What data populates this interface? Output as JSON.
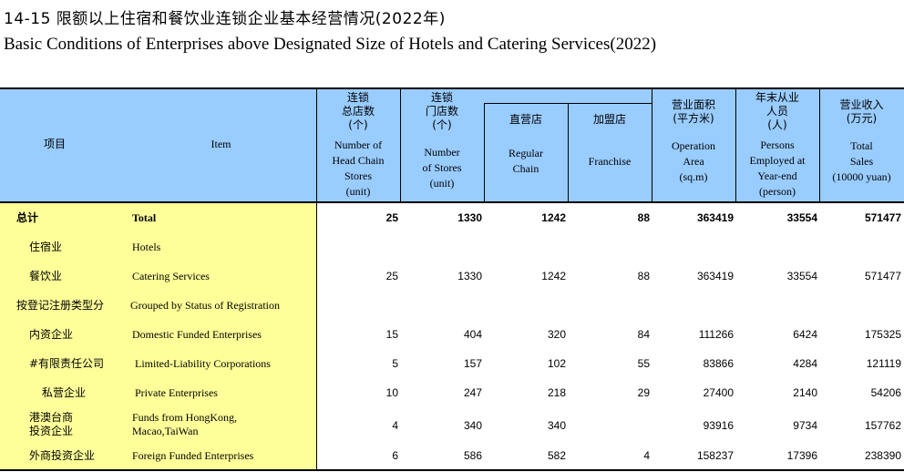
{
  "title_cn": "14-15  限额以上住宿和餐饮业连锁企业基本经营情况(2022年)",
  "title_en": "Basic Conditions of Enterprises above Designated Size of Hotels and Catering Services(2022)",
  "header": {
    "item_cn": "项目",
    "item_en": "Item",
    "head_stores_cn": "连锁\n总店数\n(个)",
    "head_stores_en": "Number of\nHead Chain\nStores\n(unit)",
    "stores_cn": "连锁\n门店数\n(个)",
    "stores_en": "Number\nof Stores\n(unit)",
    "regular_cn": "直营店",
    "regular_en": "Regular\nChain",
    "franchise_cn": "加盟店",
    "franchise_en": "Franchise",
    "area_cn": "营业面积\n(平方米)",
    "area_en": "Operation\nArea\n(sq.m)",
    "persons_cn": "年末从业\n人员\n(人)",
    "persons_en": "Persons\nEmployed at\nYear-end\n(person)",
    "sales_cn": "营业收入\n(万元)",
    "sales_en": "Total\nSales\n(10000 yuan)"
  },
  "rows": [
    {
      "cn": "总计",
      "en": "Total",
      "head_stores": "25",
      "stores": "1330",
      "regular": "1242",
      "franchise": "88",
      "area": "363419",
      "persons": "33554",
      "sales": "571477"
    },
    {
      "cn": "住宿业",
      "en": "Hotels",
      "head_stores": "",
      "stores": "",
      "regular": "",
      "franchise": "",
      "area": "",
      "persons": "",
      "sales": ""
    },
    {
      "cn": "餐饮业",
      "en": "Catering Services",
      "head_stores": "25",
      "stores": "1330",
      "regular": "1242",
      "franchise": "88",
      "area": "363419",
      "persons": "33554",
      "sales": "571477"
    },
    {
      "cn": "按登记注册类型分",
      "en": "Grouped by Status of Registration",
      "head_stores": "",
      "stores": "",
      "regular": "",
      "franchise": "",
      "area": "",
      "persons": "",
      "sales": ""
    },
    {
      "cn": "内资企业",
      "en": "Domestic Funded Enterprises",
      "head_stores": "15",
      "stores": "404",
      "regular": "320",
      "franchise": "84",
      "area": "111266",
      "persons": "6424",
      "sales": "175325"
    },
    {
      "cn": "#有限责任公司",
      "en": "Limited-Liability Corporations",
      "head_stores": "5",
      "stores": "157",
      "regular": "102",
      "franchise": "55",
      "area": "83866",
      "persons": "4284",
      "sales": "121119"
    },
    {
      "cn": "私营企业",
      "en": "Private Enterprises",
      "head_stores": "10",
      "stores": "247",
      "regular": "218",
      "franchise": "29",
      "area": "27400",
      "persons": "2140",
      "sales": "54206"
    },
    {
      "cn": "港澳台商\n投资企业",
      "en": "Funds from HongKong,\nMacao,TaiWan",
      "head_stores": "4",
      "stores": "340",
      "regular": "340",
      "franchise": "",
      "area": "93916",
      "persons": "9734",
      "sales": "157762"
    },
    {
      "cn": "外商投资企业",
      "en": "Foreign Funded Enterprises",
      "head_stores": "6",
      "stores": "586",
      "regular": "582",
      "franchise": "4",
      "area": "158237",
      "persons": "17396",
      "sales": "238390"
    }
  ]
}
